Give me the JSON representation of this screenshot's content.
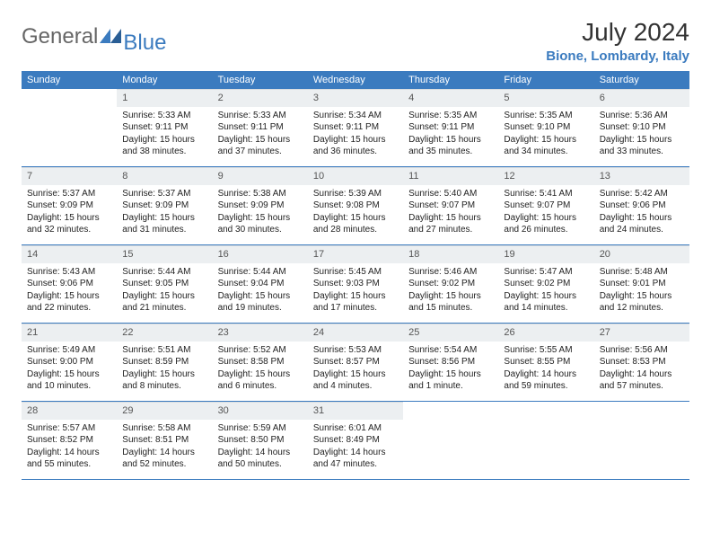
{
  "brand": {
    "text1": "General",
    "text2": "Blue"
  },
  "title": "July 2024",
  "location": "Bione, Lombardy, Italy",
  "colors": {
    "header_bg": "#3b7bbf",
    "header_text": "#ffffff",
    "daynum_bg": "#eceff1",
    "rule": "#3b7bbf"
  },
  "fonts": {
    "title_size": 28,
    "location_size": 15,
    "th_size": 11,
    "cell_size": 10
  },
  "weekdays": [
    "Sunday",
    "Monday",
    "Tuesday",
    "Wednesday",
    "Thursday",
    "Friday",
    "Saturday"
  ],
  "start_offset": 1,
  "days": [
    {
      "n": 1,
      "sunrise": "5:33 AM",
      "sunset": "9:11 PM",
      "daylight": "15 hours and 38 minutes."
    },
    {
      "n": 2,
      "sunrise": "5:33 AM",
      "sunset": "9:11 PM",
      "daylight": "15 hours and 37 minutes."
    },
    {
      "n": 3,
      "sunrise": "5:34 AM",
      "sunset": "9:11 PM",
      "daylight": "15 hours and 36 minutes."
    },
    {
      "n": 4,
      "sunrise": "5:35 AM",
      "sunset": "9:11 PM",
      "daylight": "15 hours and 35 minutes."
    },
    {
      "n": 5,
      "sunrise": "5:35 AM",
      "sunset": "9:10 PM",
      "daylight": "15 hours and 34 minutes."
    },
    {
      "n": 6,
      "sunrise": "5:36 AM",
      "sunset": "9:10 PM",
      "daylight": "15 hours and 33 minutes."
    },
    {
      "n": 7,
      "sunrise": "5:37 AM",
      "sunset": "9:09 PM",
      "daylight": "15 hours and 32 minutes."
    },
    {
      "n": 8,
      "sunrise": "5:37 AM",
      "sunset": "9:09 PM",
      "daylight": "15 hours and 31 minutes."
    },
    {
      "n": 9,
      "sunrise": "5:38 AM",
      "sunset": "9:09 PM",
      "daylight": "15 hours and 30 minutes."
    },
    {
      "n": 10,
      "sunrise": "5:39 AM",
      "sunset": "9:08 PM",
      "daylight": "15 hours and 28 minutes."
    },
    {
      "n": 11,
      "sunrise": "5:40 AM",
      "sunset": "9:07 PM",
      "daylight": "15 hours and 27 minutes."
    },
    {
      "n": 12,
      "sunrise": "5:41 AM",
      "sunset": "9:07 PM",
      "daylight": "15 hours and 26 minutes."
    },
    {
      "n": 13,
      "sunrise": "5:42 AM",
      "sunset": "9:06 PM",
      "daylight": "15 hours and 24 minutes."
    },
    {
      "n": 14,
      "sunrise": "5:43 AM",
      "sunset": "9:06 PM",
      "daylight": "15 hours and 22 minutes."
    },
    {
      "n": 15,
      "sunrise": "5:44 AM",
      "sunset": "9:05 PM",
      "daylight": "15 hours and 21 minutes."
    },
    {
      "n": 16,
      "sunrise": "5:44 AM",
      "sunset": "9:04 PM",
      "daylight": "15 hours and 19 minutes."
    },
    {
      "n": 17,
      "sunrise": "5:45 AM",
      "sunset": "9:03 PM",
      "daylight": "15 hours and 17 minutes."
    },
    {
      "n": 18,
      "sunrise": "5:46 AM",
      "sunset": "9:02 PM",
      "daylight": "15 hours and 15 minutes."
    },
    {
      "n": 19,
      "sunrise": "5:47 AM",
      "sunset": "9:02 PM",
      "daylight": "15 hours and 14 minutes."
    },
    {
      "n": 20,
      "sunrise": "5:48 AM",
      "sunset": "9:01 PM",
      "daylight": "15 hours and 12 minutes."
    },
    {
      "n": 21,
      "sunrise": "5:49 AM",
      "sunset": "9:00 PM",
      "daylight": "15 hours and 10 minutes."
    },
    {
      "n": 22,
      "sunrise": "5:51 AM",
      "sunset": "8:59 PM",
      "daylight": "15 hours and 8 minutes."
    },
    {
      "n": 23,
      "sunrise": "5:52 AM",
      "sunset": "8:58 PM",
      "daylight": "15 hours and 6 minutes."
    },
    {
      "n": 24,
      "sunrise": "5:53 AM",
      "sunset": "8:57 PM",
      "daylight": "15 hours and 4 minutes."
    },
    {
      "n": 25,
      "sunrise": "5:54 AM",
      "sunset": "8:56 PM",
      "daylight": "15 hours and 1 minute."
    },
    {
      "n": 26,
      "sunrise": "5:55 AM",
      "sunset": "8:55 PM",
      "daylight": "14 hours and 59 minutes."
    },
    {
      "n": 27,
      "sunrise": "5:56 AM",
      "sunset": "8:53 PM",
      "daylight": "14 hours and 57 minutes."
    },
    {
      "n": 28,
      "sunrise": "5:57 AM",
      "sunset": "8:52 PM",
      "daylight": "14 hours and 55 minutes."
    },
    {
      "n": 29,
      "sunrise": "5:58 AM",
      "sunset": "8:51 PM",
      "daylight": "14 hours and 52 minutes."
    },
    {
      "n": 30,
      "sunrise": "5:59 AM",
      "sunset": "8:50 PM",
      "daylight": "14 hours and 50 minutes."
    },
    {
      "n": 31,
      "sunrise": "6:01 AM",
      "sunset": "8:49 PM",
      "daylight": "14 hours and 47 minutes."
    }
  ],
  "labels": {
    "sunrise": "Sunrise:",
    "sunset": "Sunset:",
    "daylight": "Daylight:"
  }
}
